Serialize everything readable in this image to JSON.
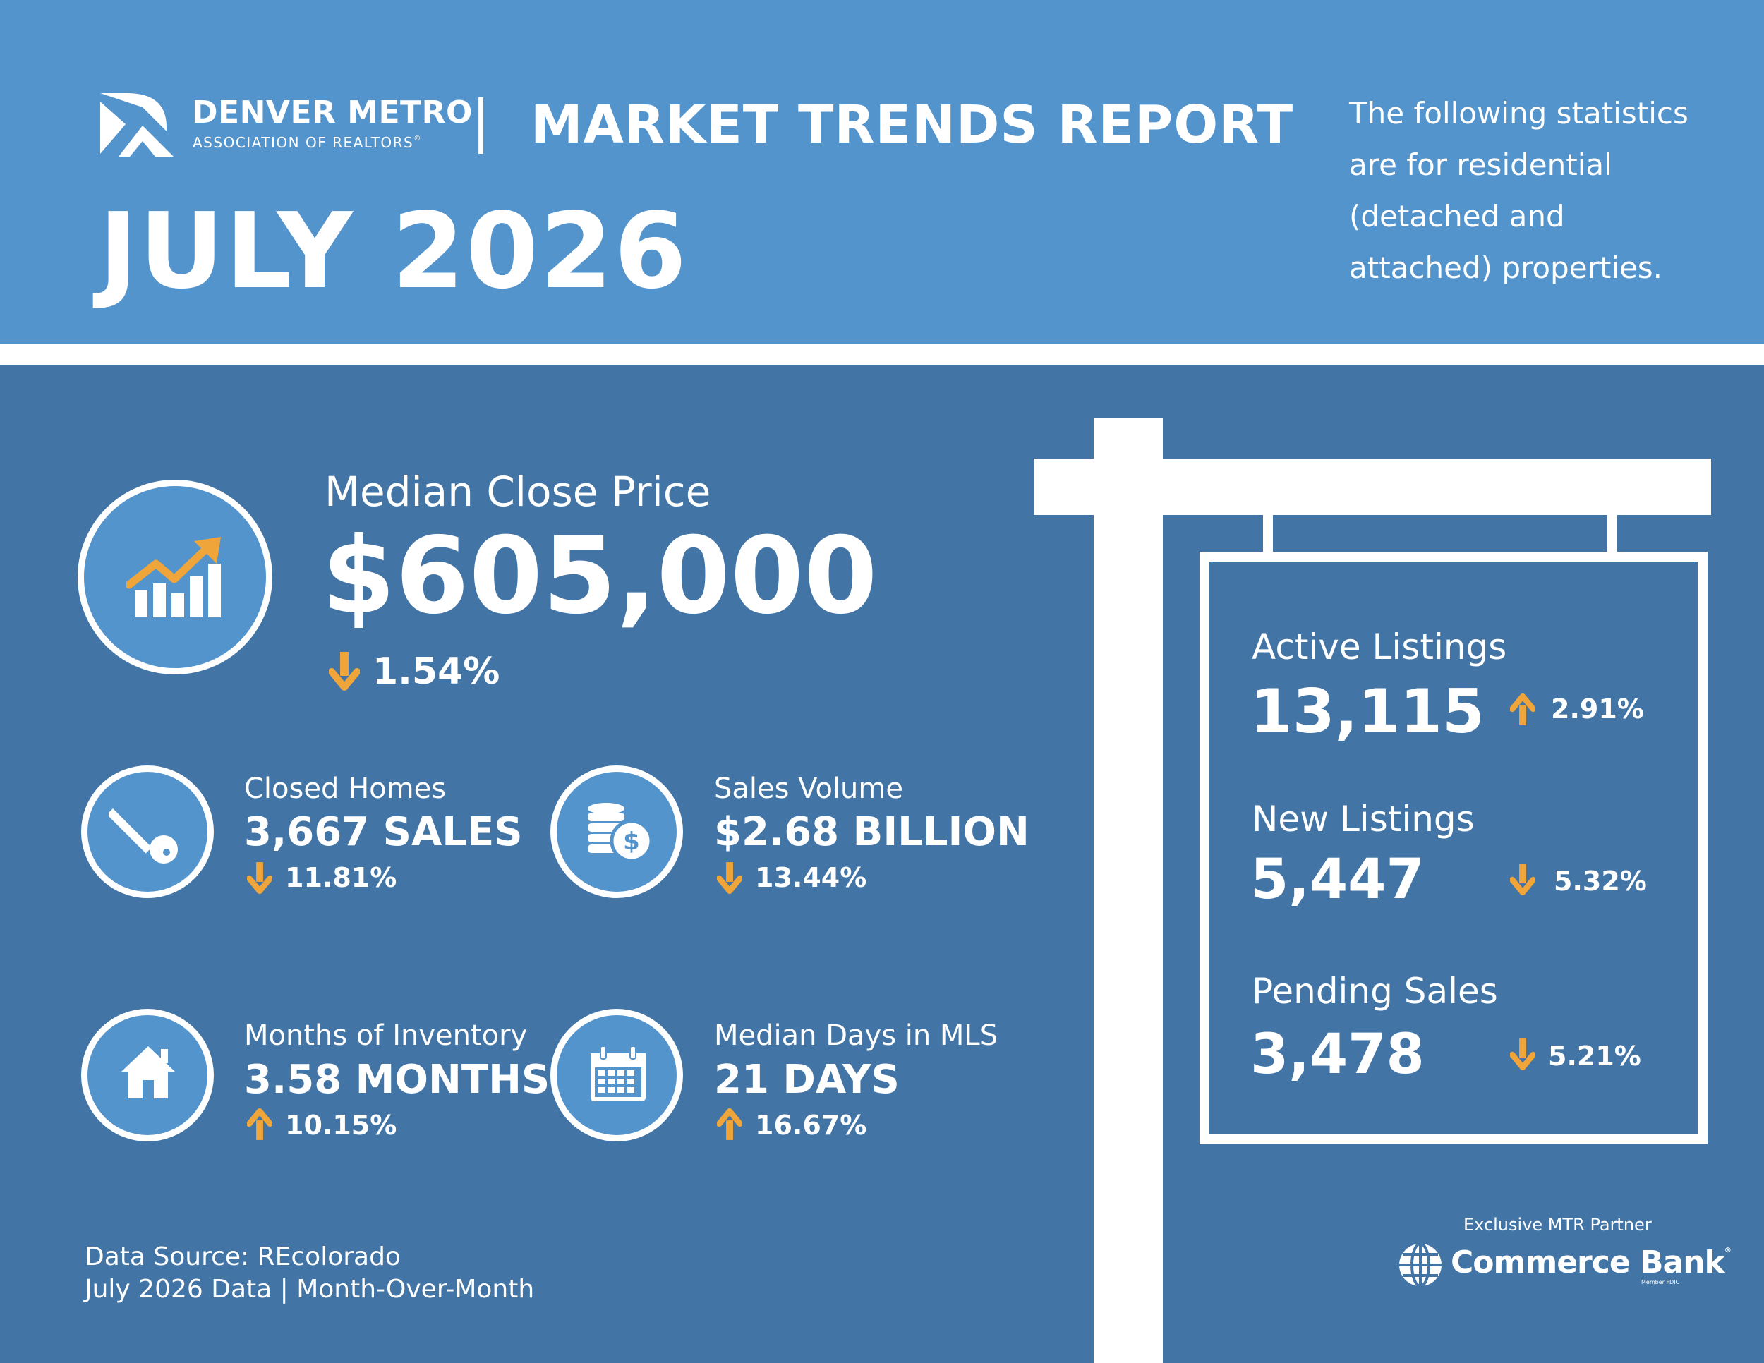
{
  "header": {
    "org_name": "DENVER METRO",
    "org_sub": "ASSOCIATION OF REALTORS",
    "registered_mark": "®",
    "divider": "|",
    "report_title": "MARKET TRENDS REPORT",
    "month_year": "JULY 2026",
    "note_lines": [
      "The following statistics",
      "are for residential",
      "(detached and",
      "attached) properties."
    ]
  },
  "median_close_price": {
    "label": "Median Close Price",
    "value": "$605,000",
    "change": "1.54%",
    "direction": "down",
    "icon": "chart-growth-icon"
  },
  "stats": [
    {
      "label": "Closed Homes",
      "value": "3,667 SALES",
      "change": "11.81%",
      "direction": "down",
      "icon": "key-icon"
    },
    {
      "label": "Sales Volume",
      "value": "$2.68 BILLION",
      "change": "13.44%",
      "direction": "down",
      "icon": "coins-icon"
    },
    {
      "label": "Months of Inventory",
      "value": "3.58 MONTHS",
      "change": "10.15%",
      "direction": "up",
      "icon": "house-icon"
    },
    {
      "label": "Median Days in MLS",
      "value": "21 DAYS",
      "change": "16.67%",
      "direction": "up",
      "icon": "calendar-icon"
    }
  ],
  "sign": {
    "items": [
      {
        "label": "Active Listings",
        "value": "13,115",
        "change": "2.91%",
        "direction": "up"
      },
      {
        "label": "New Listings",
        "value": "5,447",
        "change": "5.32%",
        "direction": "down"
      },
      {
        "label": "Pending Sales",
        "value": "3,478",
        "change": "5.21%",
        "direction": "down"
      }
    ]
  },
  "footer": {
    "source_line": "Data Source: REcolorado",
    "period_line": "July 2026 Data | Month-Over-Month",
    "partner_label": "Exclusive MTR Partner",
    "partner_name": "Commerce Bank",
    "partner_registered": "®",
    "partner_member": "Member FDIC"
  },
  "colors": {
    "header_blue": "#5394cd",
    "main_blue": "#4275a5",
    "arrow_orange": "#f0a53a",
    "white": "#ffffff"
  }
}
